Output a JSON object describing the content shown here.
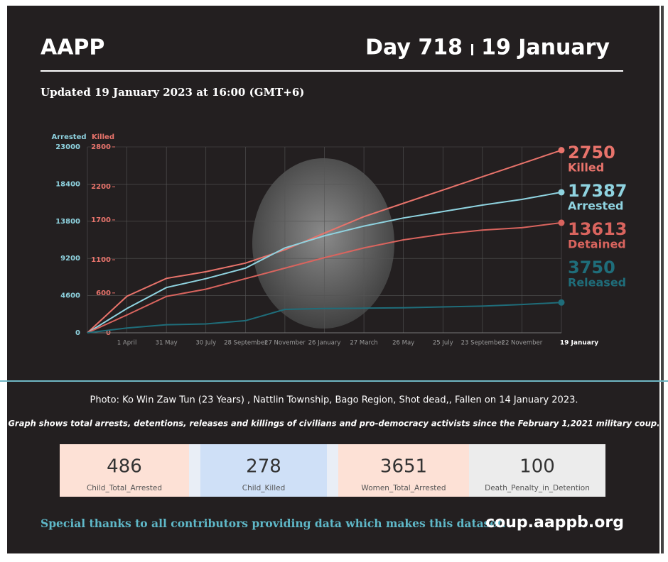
{
  "header": {
    "title": "AAPP",
    "day": "Day 718",
    "date": "19 January",
    "updated": "Updated 19 January 2023 at 16:00 (GMT+6)"
  },
  "chart_data": {
    "type": "line",
    "ylabel": "Arrested",
    "y2label": "Killed",
    "categories": [
      null,
      "1 April",
      "31 May",
      "30 July",
      "28 September",
      "27 November",
      "26 January",
      "27 March",
      "26 May",
      "25 July",
      "23 September",
      "22 November",
      "19 January"
    ],
    "series": [
      {
        "name": "Killed",
        "color": "#e8736b",
        "axis": "y2",
        "values": [
          0,
          550,
          820,
          920,
          1050,
          1250,
          1500,
          1750,
          1950,
          2150,
          2350,
          2550,
          2750
        ]
      },
      {
        "name": "Arrested",
        "color": "#8fd3e0",
        "values": [
          0,
          3000,
          5600,
          6700,
          8000,
          10500,
          12000,
          13200,
          14200,
          15000,
          15800,
          16500,
          17387
        ]
      },
      {
        "name": "Detained",
        "color": "#d9645e",
        "values": [
          0,
          2200,
          4500,
          5400,
          6700,
          8000,
          9300,
          10500,
          11500,
          12200,
          12700,
          13000,
          13613
        ]
      },
      {
        "name": "Released",
        "color": "#1f6d7a",
        "values": [
          0,
          600,
          1000,
          1100,
          1500,
          2900,
          3000,
          3050,
          3100,
          3200,
          3300,
          3500,
          3750
        ]
      }
    ],
    "ylim": [
      0,
      23000
    ],
    "yticks": [
      0,
      4600,
      9200,
      13800,
      18400,
      23000
    ],
    "y2lim": [
      0,
      2800
    ],
    "y2ticks": [
      0,
      600,
      1100,
      1700,
      2200,
      2800
    ],
    "grid": true
  },
  "photo_caption": "Photo:  Ko Win Zaw Tun (23 Years) , Nattlin Township, Bago Region, Shot dead,, Fallen on 14 January 2023.",
  "description": "Graph shows total arrests, detentions, releases and killings of civilians and pro-democracy activists since the February 1,2021 military coup.",
  "stats": [
    {
      "value": 486,
      "label": "Child_Total_Arrested"
    },
    {
      "value": 278,
      "label": "Child_Killed"
    },
    {
      "value": 3651,
      "label": "Women_Total_Arrested"
    },
    {
      "value": 100,
      "label": "Death_Penalty_in_Detention"
    }
  ],
  "footer": {
    "thanks": "Special thanks to all contributors providing data which makes this dataset.",
    "url": "coup.aappb.org"
  }
}
